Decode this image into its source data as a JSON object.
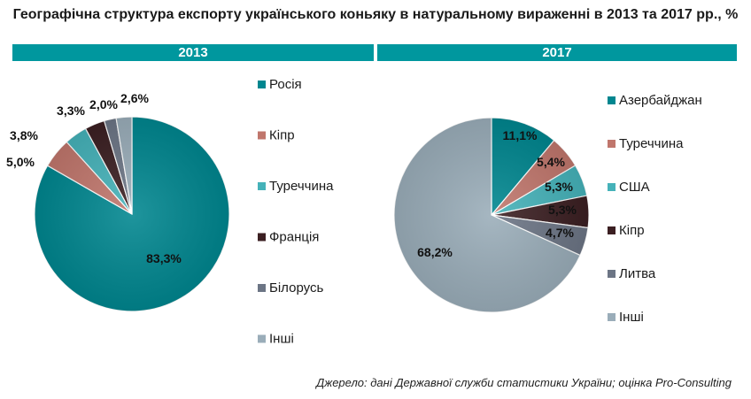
{
  "title": "Географічна структура експорту українського коньяку в натуральному вираженні в 2013 та 2017 рр., %",
  "source": "Джерело: дані Державної служби статистики України; оцінка Pro-Consulting",
  "chart_data": [
    {
      "type": "pie",
      "title": "2013",
      "categories": [
        "Росія",
        "Кіпр",
        "Туреччина",
        "Франція",
        "Білорусь",
        "Інші"
      ],
      "values": [
        83.3,
        5.0,
        3.8,
        3.3,
        2.0,
        2.6
      ],
      "labels": [
        "83,3%",
        "5,0%",
        "3,8%",
        "3,3%",
        "2,0%",
        "2,6%"
      ],
      "colors": [
        "#00868f",
        "#c0766c",
        "#45b2b9",
        "#3b1f22",
        "#6c7585",
        "#9aadb9"
      ],
      "legend": "right"
    },
    {
      "type": "pie",
      "title": "2017",
      "categories": [
        "Азербайджан",
        "Туреччина",
        "США",
        "Кіпр",
        "Литва",
        "Інші"
      ],
      "values": [
        11.1,
        5.4,
        5.3,
        5.3,
        4.7,
        68.2
      ],
      "labels": [
        "11,1%",
        "5,4%",
        "5,3%",
        "5,3%",
        "4,7%",
        "68,2%"
      ],
      "colors": [
        "#00868f",
        "#c0766c",
        "#45b2b9",
        "#3b1f22",
        "#6c7585",
        "#9aadb9"
      ],
      "legend": "right"
    }
  ]
}
